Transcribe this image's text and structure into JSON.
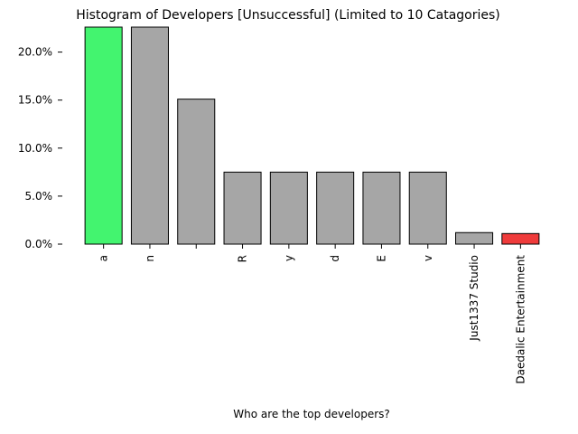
{
  "chart_data": {
    "type": "bar",
    "title": "Histogram of Developers [Unsuccessful] (Limited to 10 Catagories)",
    "xlabel": "Who are the top developers?",
    "ylabel": "",
    "categories": [
      "a",
      "n",
      " ",
      "R",
      "y",
      "d",
      "E",
      "v",
      "Just1337 Studio",
      "Daedalic Entertainment"
    ],
    "values": [
      22.6,
      22.6,
      15.1,
      7.5,
      7.5,
      7.5,
      7.5,
      7.5,
      1.2,
      1.1
    ],
    "ylim": [
      0,
      22.6
    ],
    "yticks": [
      0,
      5,
      10,
      15,
      20
    ],
    "ytick_labels": [
      "0.0%",
      "5.0%",
      "10.0%",
      "15.0%",
      "20.0%"
    ],
    "bar_colors": [
      "#43f46f",
      "#a6a6a6",
      "#a6a6a6",
      "#a6a6a6",
      "#a6a6a6",
      "#a6a6a6",
      "#a6a6a6",
      "#a6a6a6",
      "#a6a6a6",
      "#ef3b3b"
    ],
    "grid": false,
    "legend": "none"
  }
}
